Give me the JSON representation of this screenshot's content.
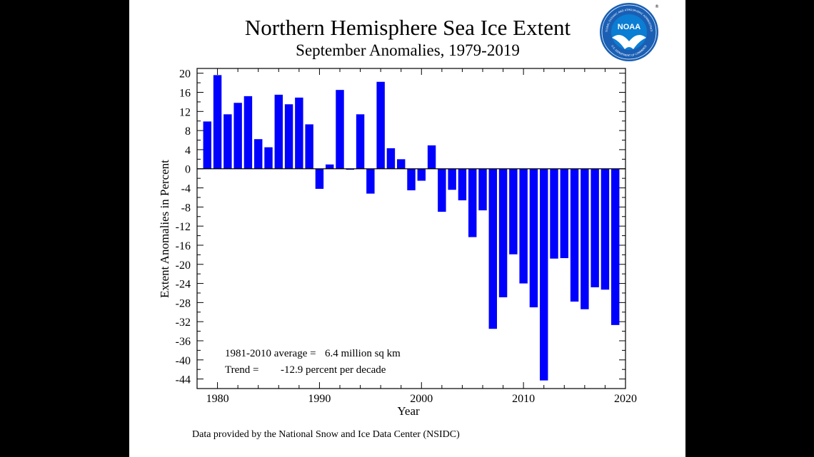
{
  "credit": "Data provided by the National Snow and Ice Data Center (NSIDC)",
  "logo": {
    "icon": "noaa-logo",
    "text": "NOAA",
    "ring_text_top": "NATIONAL OCEANIC AND ATMOSPHERIC ADMINISTRATION",
    "ring_text_bottom": "U.S. DEPARTMENT OF COMMERCE",
    "colors": {
      "outer": "#1a5fb4",
      "inner": "#0b7dd3",
      "gull": "#ffffff",
      "ring": "#ffffff"
    }
  },
  "chart_data": {
    "type": "bar",
    "title": "Northern Hemisphere Sea Ice Extent",
    "subtitle": "September Anomalies, 1979-2019",
    "xlabel": "Year",
    "ylabel": "Extent Anomalies in Percent",
    "xlim": [
      1978,
      2020
    ],
    "ylim": [
      -46,
      21
    ],
    "x_ticks": [
      1980,
      1990,
      2000,
      2010,
      2020
    ],
    "y_ticks": [
      20,
      16,
      12,
      8,
      4,
      0,
      -4,
      -8,
      -12,
      -16,
      -20,
      -24,
      -28,
      -32,
      -36,
      -40,
      -44
    ],
    "grid": false,
    "bar_color": "#0000ff",
    "x": [
      1979,
      1980,
      1981,
      1982,
      1983,
      1984,
      1985,
      1986,
      1987,
      1988,
      1989,
      1990,
      1991,
      1992,
      1993,
      1994,
      1995,
      1996,
      1997,
      1998,
      1999,
      2000,
      2001,
      2002,
      2003,
      2004,
      2005,
      2006,
      2007,
      2008,
      2009,
      2010,
      2011,
      2012,
      2013,
      2014,
      2015,
      2016,
      2017,
      2018,
      2019
    ],
    "values": [
      9.9,
      19.6,
      11.4,
      13.8,
      15.2,
      6.2,
      4.5,
      15.5,
      13.5,
      14.9,
      9.3,
      -4.2,
      0.9,
      16.5,
      -0.2,
      11.4,
      -5.2,
      18.2,
      4.3,
      2.0,
      -4.5,
      -2.5,
      4.9,
      -9.0,
      -4.4,
      -6.6,
      -14.3,
      -8.7,
      -33.5,
      -26.9,
      -17.9,
      -24.0,
      -29.0,
      -44.3,
      -18.8,
      -18.7,
      -27.8,
      -29.4,
      -24.8,
      -25.3,
      -32.7
    ],
    "annotations": [
      {
        "label": "1981-2010 average =",
        "value": "6.4 million sq km"
      },
      {
        "label": "Trend =",
        "value": "-12.9 percent per decade"
      }
    ]
  }
}
